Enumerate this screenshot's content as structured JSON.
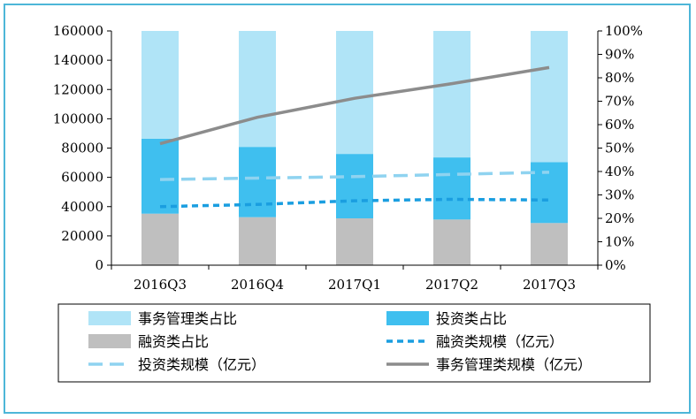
{
  "chart_data": {
    "type": "bar",
    "categories": [
      "2016Q3",
      "2016Q4",
      "2017Q1",
      "2017Q2",
      "2017Q3"
    ],
    "y_left": {
      "lim": [
        0,
        160000
      ],
      "ticks": [
        "0",
        "20000",
        "40000",
        "60000",
        "80000",
        "100000",
        "120000",
        "140000",
        "160000"
      ]
    },
    "y_right": {
      "lim": [
        0,
        100
      ],
      "ticks": [
        "0%",
        "10%",
        "20%",
        "30%",
        "40%",
        "50%",
        "60%",
        "70%",
        "80%",
        "90%",
        "100%"
      ]
    },
    "series": [
      {
        "name": "融资类占比",
        "kind": "bar",
        "axis": "right",
        "color": "#bfbfbf",
        "values": [
          22,
          20.5,
          20,
          19.5,
          18
        ]
      },
      {
        "name": "投资类占比",
        "kind": "bar",
        "axis": "right",
        "color": "#3fbfef",
        "values": [
          32,
          30,
          27.5,
          26.5,
          26
        ]
      },
      {
        "name": "事务管理类占比",
        "kind": "bar",
        "axis": "right",
        "color": "#b0e4f7",
        "values": [
          46,
          49.5,
          52.5,
          54,
          56
        ]
      },
      {
        "name": "融资类规模（亿元）",
        "kind": "line",
        "axis": "left",
        "color": "#1a9ee0",
        "dash": "short",
        "values": [
          40000,
          41500,
          44000,
          45000,
          44500
        ]
      },
      {
        "name": "投资类规模（亿元）",
        "kind": "line",
        "axis": "left",
        "color": "#8fd3f0",
        "dash": "long",
        "values": [
          58500,
          59500,
          60500,
          62000,
          63500
        ]
      },
      {
        "name": "事务管理类规模（亿元）",
        "kind": "line",
        "axis": "left",
        "color": "#8c8c8c",
        "dash": "solid",
        "values": [
          83000,
          101000,
          114000,
          124000,
          135000
        ]
      }
    ],
    "legend": {
      "placement": "bottom",
      "order": [
        2,
        1,
        0,
        3,
        4,
        5
      ]
    }
  }
}
